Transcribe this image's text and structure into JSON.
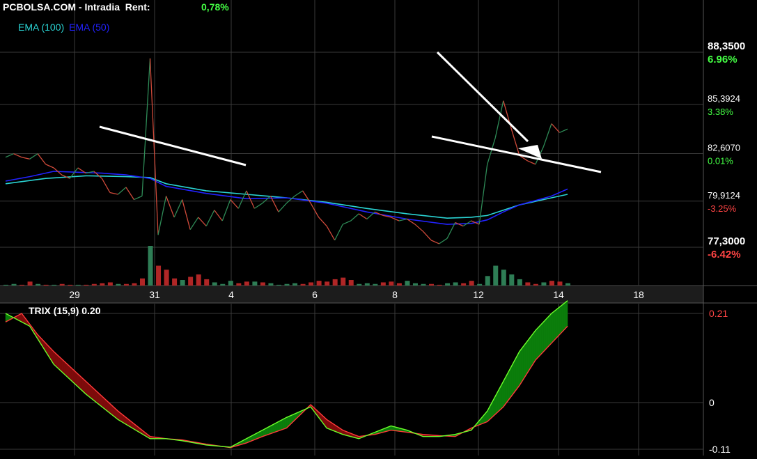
{
  "header": {
    "title": "PCBOLSA.COM - Intradia  Rent:",
    "rent_value": "0,78%",
    "rent_color": "#44ff44"
  },
  "legend": {
    "ema100_label": "EMA (100)",
    "ema100_color": "#2ad4d4",
    "ema50_label": "EMA (50)",
    "ema50_color": "#2222ff"
  },
  "price_scale": [
    {
      "price": "88,3500",
      "pct": "6.96%",
      "value": 88.35,
      "major": true,
      "pct_color": "#44ff44"
    },
    {
      "price": "85,3924",
      "pct": "3.38%",
      "value": 85.3924,
      "major": false,
      "pct_color": "#44ff44"
    },
    {
      "price": "82,6070",
      "pct": "0.01%",
      "value": 82.607,
      "major": false,
      "pct_color": "#44ff44"
    },
    {
      "price": "79,9124",
      "pct": "-3.25%",
      "value": 79.9124,
      "major": false,
      "pct_color": "#ff4444"
    },
    {
      "price": "77,3000",
      "pct": "-6.42%",
      "value": 77.3,
      "major": true,
      "pct_color": "#ff4444"
    }
  ],
  "x_axis": {
    "labels": [
      "29",
      "31",
      "4",
      "6",
      "8",
      "12",
      "14",
      "18"
    ]
  },
  "trix": {
    "title": "TRIX (15,9) 0.20",
    "scale": [
      {
        "label": "0.21",
        "value": 0.21,
        "color": "#ff4444"
      },
      {
        "label": "0",
        "value": 0,
        "color": "#ffffff"
      },
      {
        "label": "-0.11",
        "value": -0.11,
        "color": "#ffffff"
      }
    ]
  },
  "chart_data": {
    "type": "line",
    "price_series": {
      "name": "",
      "x": [
        0,
        1,
        2,
        3,
        4,
        5,
        6,
        7,
        8,
        9,
        10,
        11,
        12,
        13,
        14,
        15,
        16,
        17,
        18,
        19,
        20,
        21,
        22,
        23,
        24,
        25,
        26,
        27,
        28,
        29,
        30,
        31,
        32,
        33,
        34,
        35,
        36,
        37,
        38,
        39,
        40,
        41,
        42,
        43,
        44,
        45,
        46,
        47,
        48,
        49,
        50,
        51,
        52,
        53,
        54,
        55,
        56,
        57,
        58,
        59,
        60,
        61,
        62,
        63,
        64,
        65,
        66,
        67,
        68,
        69,
        70
      ],
      "y": [
        82.4,
        82.6,
        82.4,
        82.3,
        82.6,
        82.0,
        81.8,
        81.4,
        81.2,
        81.8,
        81.5,
        81.6,
        81.2,
        80.4,
        80.3,
        80.7,
        80.0,
        80.2,
        88.0,
        78.0,
        80.2,
        79.0,
        80.0,
        78.3,
        79.0,
        78.5,
        79.4,
        78.8,
        80.0,
        79.5,
        80.5,
        79.5,
        79.8,
        80.2,
        79.3,
        79.8,
        80.2,
        80.5,
        79.8,
        79.0,
        78.5,
        77.7,
        78.6,
        78.8,
        79.2,
        78.9,
        79.3,
        79.1,
        79.0,
        78.8,
        78.9,
        78.6,
        78.2,
        77.7,
        77.5,
        77.8,
        78.7,
        78.5,
        78.8,
        78.6,
        82.0,
        83.5,
        85.6,
        84.0,
        82.5,
        82.2,
        82.0,
        83.0,
        84.3,
        83.8,
        84.0
      ],
      "color_up": "#2e8b57",
      "color_down": "#d04a3a"
    },
    "ema100": {
      "name": "EMA (100)",
      "x": [
        0,
        5,
        10,
        15,
        18,
        20,
        25,
        30,
        35,
        40,
        45,
        50,
        55,
        58,
        60,
        62,
        64,
        66,
        68,
        70
      ],
      "y": [
        80.9,
        81.2,
        81.35,
        81.3,
        81.25,
        80.9,
        80.5,
        80.3,
        80.1,
        79.85,
        79.5,
        79.2,
        78.95,
        79.0,
        79.1,
        79.4,
        79.7,
        79.9,
        80.1,
        80.3
      ]
    },
    "ema50": {
      "name": "EMA (50)",
      "x": [
        0,
        3,
        6,
        9,
        12,
        15,
        18,
        20,
        25,
        30,
        35,
        40,
        45,
        50,
        55,
        58,
        60,
        62,
        64,
        66,
        68,
        70
      ],
      "y": [
        81.05,
        81.3,
        81.6,
        81.55,
        81.5,
        81.4,
        81.2,
        80.75,
        80.35,
        80.05,
        80.1,
        79.8,
        79.3,
        78.9,
        78.6,
        78.65,
        78.85,
        79.3,
        79.7,
        79.95,
        80.2,
        80.6
      ]
    },
    "volume": {
      "x": [
        0,
        1,
        2,
        3,
        4,
        5,
        6,
        7,
        8,
        9,
        10,
        11,
        12,
        13,
        14,
        15,
        16,
        17,
        18,
        19,
        20,
        21,
        22,
        23,
        24,
        25,
        26,
        27,
        28,
        29,
        30,
        31,
        32,
        33,
        34,
        35,
        36,
        37,
        38,
        39,
        40,
        41,
        42,
        43,
        44,
        45,
        46,
        47,
        48,
        49,
        50,
        51,
        52,
        53,
        54,
        55,
        56,
        57,
        58,
        59,
        60,
        61,
        62,
        63,
        64,
        65,
        66,
        67,
        68,
        69,
        70
      ],
      "values": [
        1,
        2,
        1,
        5,
        2,
        1,
        1,
        2,
        1,
        1,
        1,
        2,
        3,
        4,
        2,
        2,
        3,
        9,
        50,
        25,
        20,
        9,
        7,
        11,
        14,
        8,
        4,
        2,
        6,
        3,
        5,
        5,
        4,
        3,
        1,
        2,
        3,
        2,
        4,
        6,
        5,
        8,
        10,
        7,
        2,
        3,
        2,
        4,
        5,
        3,
        6,
        3,
        2,
        2,
        1,
        3,
        4,
        3,
        6,
        2,
        12,
        25,
        20,
        14,
        8,
        4,
        2,
        4,
        6,
        5,
        3
      ],
      "up": [
        1,
        1,
        0,
        0,
        1,
        0,
        1,
        0,
        0,
        1,
        0,
        0,
        0,
        0,
        1,
        0,
        0,
        0,
        1,
        0,
        0,
        0,
        1,
        0,
        0,
        0,
        1,
        1,
        1,
        0,
        0,
        1,
        0,
        1,
        1,
        1,
        1,
        0,
        0,
        0,
        0,
        0,
        0,
        0,
        1,
        1,
        1,
        0,
        0,
        0,
        1,
        1,
        1,
        0,
        0,
        1,
        1,
        0,
        0,
        1,
        1,
        1,
        1,
        1,
        1,
        0,
        0,
        1,
        0,
        0,
        1
      ]
    },
    "trix_fast": {
      "name": "",
      "x": [
        0,
        3,
        6,
        10,
        14,
        18,
        20,
        22,
        25,
        28,
        30,
        32,
        35,
        38,
        40,
        42,
        44,
        46,
        48,
        50,
        52,
        54,
        56,
        58,
        60,
        62,
        64,
        66,
        68,
        70
      ],
      "y": [
        0.21,
        0.18,
        0.09,
        0.02,
        -0.04,
        -0.085,
        -0.085,
        -0.09,
        -0.1,
        -0.105,
        -0.085,
        -0.065,
        -0.035,
        -0.01,
        -0.06,
        -0.075,
        -0.085,
        -0.07,
        -0.055,
        -0.065,
        -0.08,
        -0.08,
        -0.075,
        -0.065,
        -0.02,
        0.05,
        0.12,
        0.17,
        0.21,
        0.24
      ]
    },
    "trix_slow": {
      "name": "",
      "x": [
        0,
        2,
        4,
        6,
        10,
        14,
        18,
        20,
        22,
        25,
        28,
        30,
        32,
        35,
        38,
        40,
        42,
        44,
        46,
        48,
        50,
        52,
        54,
        56,
        58,
        60,
        62,
        64,
        66,
        68,
        70
      ],
      "y": [
        0.19,
        0.21,
        0.16,
        0.12,
        0.05,
        -0.02,
        -0.08,
        -0.085,
        -0.088,
        -0.098,
        -0.106,
        -0.095,
        -0.08,
        -0.06,
        -0.005,
        -0.04,
        -0.065,
        -0.08,
        -0.075,
        -0.065,
        -0.07,
        -0.075,
        -0.078,
        -0.08,
        -0.06,
        -0.045,
        -0.01,
        0.04,
        0.1,
        0.14,
        0.18
      ]
    }
  }
}
